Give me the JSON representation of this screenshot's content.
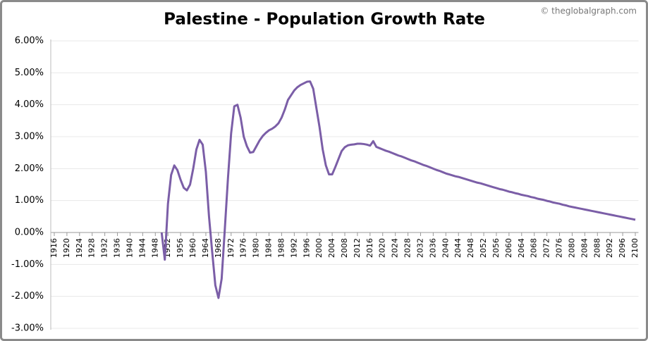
{
  "chart_data": {
    "type": "line",
    "title": "Palestine - Population Growth Rate",
    "watermark": "© theglobalgraph.com",
    "color": "#7b5ea7",
    "grid": true,
    "xlim": [
      1915,
      2101
    ],
    "ylim": [
      -3,
      6
    ],
    "yticks": [
      {
        "value": -3,
        "label": "-3.00%"
      },
      {
        "value": -2,
        "label": "-2.00%"
      },
      {
        "value": -1,
        "label": "-1.00%"
      },
      {
        "value": 0,
        "label": "0.00%"
      },
      {
        "value": 1,
        "label": "1.00%"
      },
      {
        "value": 2,
        "label": "2.00%"
      },
      {
        "value": 3,
        "label": "3.00%"
      },
      {
        "value": 4,
        "label": "4.00%"
      },
      {
        "value": 5,
        "label": "5.00%"
      },
      {
        "value": 6,
        "label": "6.00%"
      }
    ],
    "xticks": [
      1916,
      1920,
      1924,
      1928,
      1932,
      1936,
      1940,
      1944,
      1948,
      1952,
      1956,
      1960,
      1964,
      1968,
      1972,
      1976,
      1980,
      1984,
      1988,
      1992,
      1996,
      2000,
      2004,
      2008,
      2012,
      2016,
      2020,
      2024,
      2028,
      2032,
      2036,
      2040,
      2044,
      2048,
      2052,
      2056,
      2060,
      2064,
      2068,
      2072,
      2076,
      2080,
      2084,
      2088,
      2092,
      2096,
      2100
    ],
    "x": [
      1950,
      1951,
      1952,
      1953,
      1954,
      1955,
      1956,
      1957,
      1958,
      1959,
      1960,
      1961,
      1962,
      1963,
      1964,
      1965,
      1966,
      1967,
      1968,
      1969,
      1970,
      1971,
      1972,
      1973,
      1974,
      1975,
      1976,
      1977,
      1978,
      1979,
      1980,
      1981,
      1982,
      1983,
      1984,
      1985,
      1986,
      1987,
      1988,
      1989,
      1990,
      1991,
      1992,
      1993,
      1994,
      1995,
      1996,
      1997,
      1998,
      1999,
      2000,
      2001,
      2002,
      2003,
      2004,
      2005,
      2006,
      2007,
      2008,
      2009,
      2010,
      2011,
      2012,
      2013,
      2014,
      2015,
      2016,
      2017,
      2018,
      2019,
      2020,
      2021,
      2022,
      2023,
      2024,
      2025,
      2026,
      2027,
      2028,
      2029,
      2030,
      2031,
      2032,
      2033,
      2034,
      2035,
      2036,
      2037,
      2038,
      2039,
      2040,
      2041,
      2042,
      2043,
      2044,
      2045,
      2046,
      2047,
      2048,
      2049,
      2050,
      2051,
      2052,
      2053,
      2054,
      2055,
      2056,
      2057,
      2058,
      2059,
      2060,
      2061,
      2062,
      2063,
      2064,
      2065,
      2066,
      2067,
      2068,
      2069,
      2070,
      2071,
      2072,
      2073,
      2074,
      2075,
      2076,
      2077,
      2078,
      2079,
      2080,
      2081,
      2082,
      2083,
      2084,
      2085,
      2086,
      2087,
      2088,
      2089,
      2090,
      2091,
      2092,
      2093,
      2094,
      2095,
      2096,
      2097,
      2098,
      2099,
      2100
    ],
    "values": [
      0.0,
      -0.85,
      0.9,
      1.8,
      2.1,
      1.95,
      1.65,
      1.4,
      1.32,
      1.5,
      2.0,
      2.6,
      2.9,
      2.75,
      1.9,
      0.5,
      -0.6,
      -1.65,
      -2.05,
      -1.45,
      0.1,
      1.7,
      3.1,
      3.95,
      4.0,
      3.6,
      3.0,
      2.7,
      2.5,
      2.52,
      2.7,
      2.88,
      3.02,
      3.12,
      3.2,
      3.25,
      3.32,
      3.42,
      3.6,
      3.85,
      4.15,
      4.3,
      4.45,
      4.55,
      4.62,
      4.67,
      4.72,
      4.73,
      4.5,
      3.9,
      3.3,
      2.6,
      2.1,
      1.82,
      1.82,
      2.05,
      2.3,
      2.55,
      2.67,
      2.73,
      2.75,
      2.76,
      2.78,
      2.78,
      2.77,
      2.75,
      2.72,
      2.86,
      2.68,
      2.64,
      2.6,
      2.56,
      2.53,
      2.49,
      2.45,
      2.41,
      2.38,
      2.34,
      2.3,
      2.26,
      2.23,
      2.19,
      2.15,
      2.11,
      2.08,
      2.04,
      2.0,
      1.96,
      1.93,
      1.89,
      1.85,
      1.82,
      1.79,
      1.76,
      1.74,
      1.71,
      1.68,
      1.65,
      1.62,
      1.59,
      1.56,
      1.54,
      1.51,
      1.48,
      1.45,
      1.42,
      1.39,
      1.36,
      1.34,
      1.31,
      1.28,
      1.26,
      1.23,
      1.21,
      1.18,
      1.16,
      1.14,
      1.11,
      1.09,
      1.06,
      1.04,
      1.02,
      0.99,
      0.97,
      0.94,
      0.92,
      0.9,
      0.87,
      0.85,
      0.82,
      0.8,
      0.78,
      0.76,
      0.74,
      0.72,
      0.7,
      0.68,
      0.66,
      0.64,
      0.62,
      0.6,
      0.58,
      0.56,
      0.54,
      0.52,
      0.5,
      0.48,
      0.46,
      0.44,
      0.42,
      0.4
    ]
  }
}
